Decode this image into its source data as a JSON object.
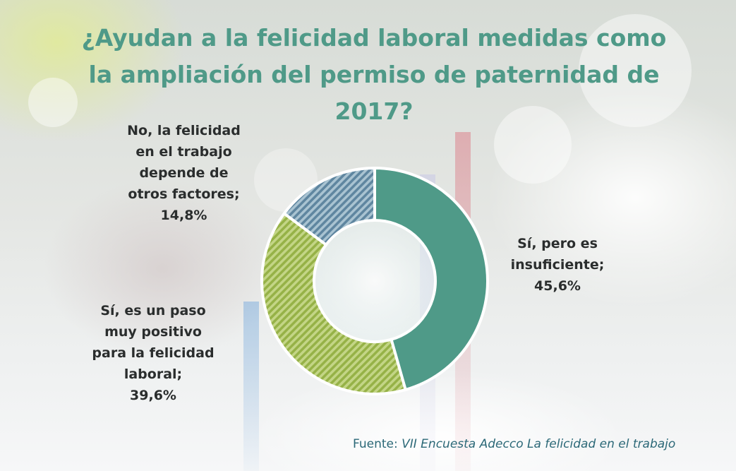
{
  "title": "¿Ayudan a la felicidad laboral medidas como la ampliación del permiso de paternidad de 2017?",
  "chart_data": {
    "type": "pie",
    "variant": "donut",
    "title": "¿Ayudan a la felicidad laboral medidas como la ampliación del permiso de paternidad de 2017?",
    "slices": [
      {
        "label_lines": [
          "Sí, pero es",
          "insuficiente;"
        ],
        "value_label": "45,6%",
        "value": 45.6,
        "color": "#4f9a88",
        "pattern": "solid"
      },
      {
        "label_lines": [
          "Sí, es un paso",
          "muy positivo",
          "para la felicidad",
          "laboral;"
        ],
        "value_label": "39,6%",
        "value": 39.6,
        "color": "#a9c25c",
        "pattern": "diagonal-stripes"
      },
      {
        "label_lines": [
          "No, la felicidad",
          "en el trabajo",
          "depende de",
          "otros factores;"
        ],
        "value_label": "14,8%",
        "value": 14.8,
        "color": "#6e93a6",
        "pattern": "diagonal-stripes"
      }
    ]
  },
  "source": {
    "prefix": "Fuente:",
    "text": "VII Encuesta Adecco La felicidad en el trabajo"
  }
}
